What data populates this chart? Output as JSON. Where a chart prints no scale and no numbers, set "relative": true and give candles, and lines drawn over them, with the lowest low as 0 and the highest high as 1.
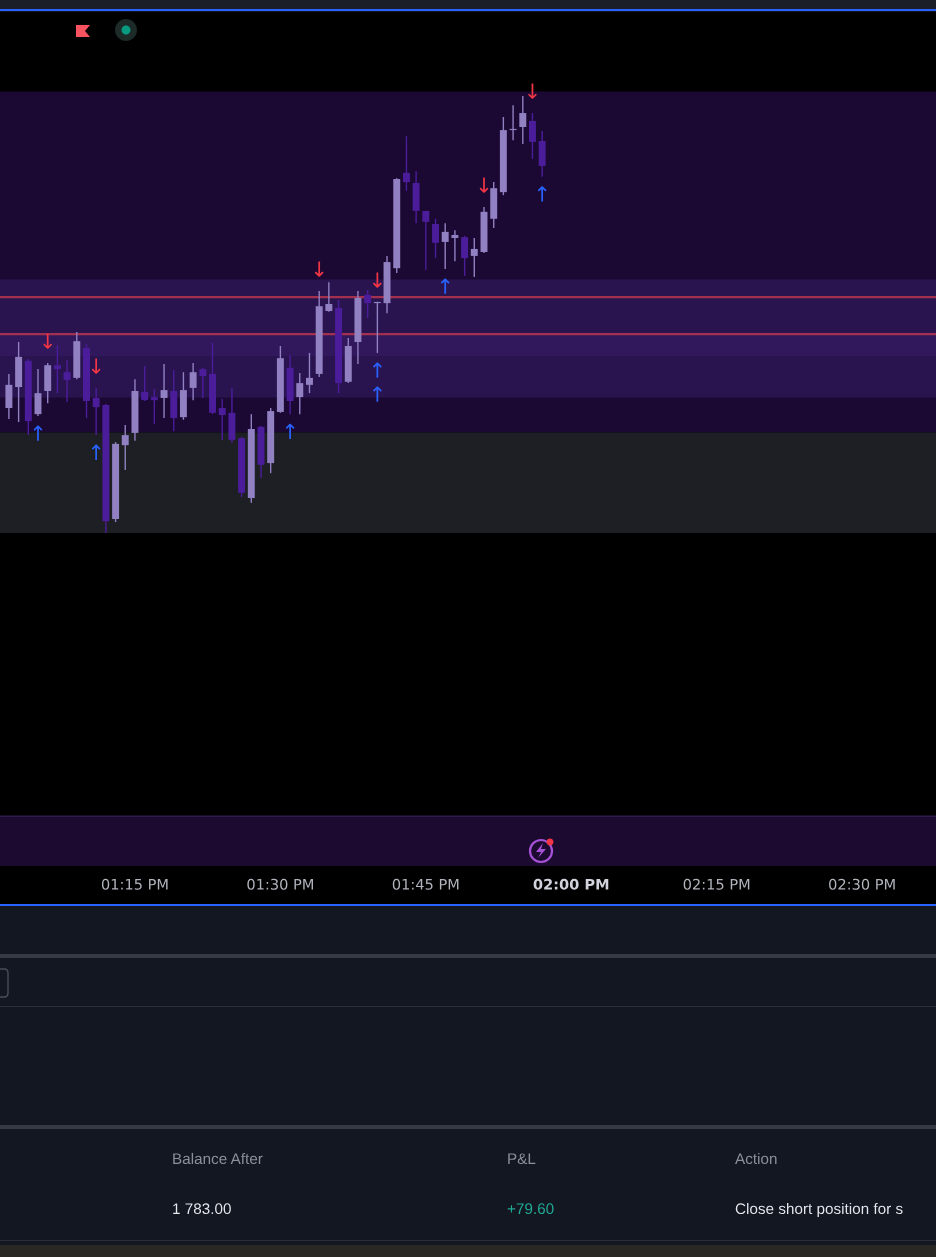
{
  "chart_data": {
    "type": "candlestick",
    "relative": true,
    "tick_labels": "x",
    "x": [
      13.0333,
      13.05,
      13.0667,
      13.0833,
      13.1,
      13.1167,
      13.1333,
      13.15,
      13.1667,
      13.1833,
      13.2,
      13.2167,
      13.2333,
      13.25,
      13.2667,
      13.2833,
      13.3,
      13.3167,
      13.3333,
      13.35,
      13.3667,
      13.3833,
      13.4,
      13.4167,
      13.4333,
      13.45,
      13.4667,
      13.4833,
      13.5,
      13.5167,
      13.5333,
      13.55,
      13.5667,
      13.5833,
      13.6,
      13.6167,
      13.6333,
      13.65,
      13.6667,
      13.6833,
      13.7,
      13.7167,
      13.7333,
      13.75,
      13.7667,
      13.7833,
      13.8,
      13.8167,
      13.8333,
      13.85,
      13.8667,
      13.8833,
      13.9,
      13.9167,
      13.9333,
      13.95
    ],
    "ohlc": [
      [
        0.286,
        0.364,
        0.261,
        0.339
      ],
      [
        0.334,
        0.437,
        0.254,
        0.403
      ],
      [
        0.394,
        0.398,
        0.224,
        0.256
      ],
      [
        0.272,
        0.375,
        0.268,
        0.32
      ],
      [
        0.325,
        0.389,
        0.297,
        0.384
      ],
      [
        0.384,
        0.43,
        0.32,
        0.375
      ],
      [
        0.368,
        0.396,
        0.3,
        0.35
      ],
      [
        0.355,
        0.46,
        0.352,
        0.439
      ],
      [
        0.423,
        0.432,
        0.263,
        0.302
      ],
      [
        0.309,
        0.332,
        0.224,
        0.288
      ],
      [
        0.293,
        0.295,
        0,
        0.027
      ],
      [
        0.032,
        0.208,
        0.025,
        0.204
      ],
      [
        0.201,
        0.247,
        0.144,
        0.224
      ],
      [
        0.229,
        0.352,
        0.211,
        0.325
      ],
      [
        0.323,
        0.382,
        0.302,
        0.304
      ],
      [
        0.311,
        0.33,
        0.249,
        0.304
      ],
      [
        0.309,
        0.387,
        0.263,
        0.327
      ],
      [
        0.325,
        0.373,
        0.233,
        0.263
      ],
      [
        0.265,
        0.368,
        0.259,
        0.327
      ],
      [
        0.332,
        0.389,
        0.304,
        0.368
      ],
      [
        0.375,
        0.378,
        0.309,
        0.359
      ],
      [
        0.364,
        0.435,
        0.272,
        0.275
      ],
      [
        0.286,
        0.307,
        0.213,
        0.27
      ],
      [
        0.275,
        0.332,
        0.206,
        0.213
      ],
      [
        0.217,
        0.22,
        0.082,
        0.092
      ],
      [
        0.08,
        0.272,
        0.069,
        0.238
      ],
      [
        0.243,
        0.245,
        0.126,
        0.156
      ],
      [
        0.16,
        0.286,
        0.137,
        0.279
      ],
      [
        0.277,
        0.428,
        0.275,
        0.4
      ],
      [
        0.378,
        0.407,
        0.272,
        0.302
      ],
      [
        0.311,
        0.366,
        0.272,
        0.343
      ],
      [
        0.339,
        0.412,
        0.32,
        0.355
      ],
      [
        0.364,
        0.554,
        0.357,
        0.519
      ],
      [
        0.508,
        0.574,
        0.506,
        0.524
      ],
      [
        0.515,
        0.533,
        0.32,
        0.343
      ],
      [
        0.346,
        0.446,
        0.343,
        0.428
      ],
      [
        0.437,
        0.554,
        0.387,
        0.538
      ],
      [
        0.545,
        0.556,
        0.492,
        0.526
      ],
      [
        0.526,
        0.529,
        0.412,
        0.526
      ],
      [
        0.526,
        0.634,
        0.503,
        0.62
      ],
      [
        0.606,
        0.812,
        0.595,
        0.81
      ],
      [
        0.824,
        0.908,
        0.783,
        0.803
      ],
      [
        0.801,
        0.828,
        0.709,
        0.737
      ],
      [
        0.737,
        0.737,
        0.602,
        0.712
      ],
      [
        0.707,
        0.719,
        0.629,
        0.664
      ],
      [
        0.666,
        0.709,
        0.604,
        0.689
      ],
      [
        0.675,
        0.693,
        0.622,
        0.682
      ],
      [
        0.677,
        0.68,
        0.588,
        0.629
      ],
      [
        0.634,
        0.675,
        0.586,
        0.65
      ],
      [
        0.643,
        0.746,
        0.641,
        0.735
      ],
      [
        0.719,
        0.803,
        0.698,
        0.789
      ],
      [
        0.78,
        0.952,
        0.773,
        0.922
      ],
      [
        0.922,
        0.979,
        0.899,
        0.922
      ],
      [
        0.929,
        1,
        0.89,
        0.961
      ],
      [
        0.943,
        0.961,
        0.856,
        0.895
      ],
      [
        0.897,
        0.92,
        0.815,
        0.84
      ]
    ],
    "colors": [
      "#9180c2",
      "#9180c2",
      "#4c1d9b",
      "#9180c2",
      "#9180c2",
      "#4c1d9b",
      "#4c1d9b",
      "#9180c2",
      "#4c1d9b",
      "#4c1d9b",
      "#4c1d9b",
      "#9180c2",
      "#9180c2",
      "#9180c2",
      "#4c1d9b",
      "#4c1d9b",
      "#9180c2",
      "#4c1d9b",
      "#9180c2",
      "#9180c2",
      "#4c1d9b",
      "#4c1d9b",
      "#4c1d9b",
      "#4c1d9b",
      "#4c1d9b",
      "#9180c2",
      "#4c1d9b",
      "#9180c2",
      "#9180c2",
      "#4c1d9b",
      "#9180c2",
      "#9180c2",
      "#9180c2",
      "#9180c2",
      "#4c1d9b",
      "#9180c2",
      "#9180c2",
      "#4c1d9b",
      "#9180c2",
      "#9180c2",
      "#9180c2",
      "#4c1d9b",
      "#4c1d9b",
      "#4c1d9b",
      "#4c1d9b",
      "#9180c2",
      "#9180c2",
      "#4c1d9b",
      "#9180c2",
      "#9180c2",
      "#9180c2",
      "#9180c2",
      "#9180c2",
      "#9180c2",
      "#4c1d9b",
      "#4c1d9b"
    ],
    "xlim": [
      13.018,
      14.627
    ],
    "xticks": [
      {
        "value": 13.25,
        "label": "01:15 PM"
      },
      {
        "value": 13.5,
        "label": "01:30 PM"
      },
      {
        "value": 13.75,
        "label": "01:45 PM"
      },
      {
        "value": 14.0,
        "label": "02:00 PM"
      },
      {
        "value": 14.25,
        "label": "02:15 PM"
      },
      {
        "value": 14.5,
        "label": "02:30 PM"
      }
    ],
    "bands": [
      {
        "axis": "y",
        "from": 0.23,
        "to": 1.01,
        "color": "#1b0933"
      },
      {
        "axis": "y",
        "from": 0,
        "to": 0.23,
        "color": "#1e1f24"
      },
      {
        "axis": "y",
        "from": 0.31,
        "to": 0.58,
        "color": "#2a1450"
      },
      {
        "axis": "y",
        "from": 0.405,
        "to": 0.455,
        "color": "#31175c"
      }
    ],
    "ref_lines": [
      {
        "axis": "y",
        "value": 0.455,
        "color": "#a3304e",
        "line_style": "solid"
      },
      {
        "axis": "y",
        "value": 0.54,
        "color": "#a3304e",
        "line_style": "solid"
      }
    ],
    "annotations": [
      {
        "text": "↓",
        "x": 13.1,
        "y": 0.389
      },
      {
        "text": "↓",
        "x": 13.1833,
        "y": 0.332
      },
      {
        "text": "↓",
        "x": 13.5667,
        "y": 0.554
      },
      {
        "text": "↓",
        "x": 13.6667,
        "y": 0.529
      },
      {
        "text": "↓",
        "x": 13.85,
        "y": 0.746
      },
      {
        "text": "↓",
        "x": 13.9333,
        "y": 0.961
      },
      {
        "text": "↑",
        "x": 13.0833,
        "y": 0.268
      },
      {
        "text": "↑",
        "x": 13.1833,
        "y": 0.224
      },
      {
        "text": "↑",
        "x": 13.5167,
        "y": 0.272
      },
      {
        "text": "↑",
        "x": 13.6667,
        "y": 0.412
      },
      {
        "text": "↑",
        "x": 13.6667,
        "y": 0.412
      },
      {
        "text": "↑",
        "x": 13.7833,
        "y": 0.604
      },
      {
        "text": "↑",
        "x": 13.95,
        "y": 0.815
      },
      "Balance After",
      "P&L",
      "Action",
      "1 783.00",
      "+79.60",
      "Close short position for s"
    ]
  }
}
